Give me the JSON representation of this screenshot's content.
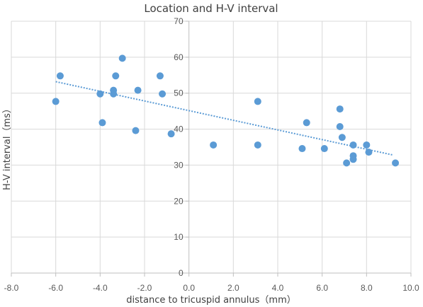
{
  "chart_data": {
    "type": "scatter",
    "title": "Location and H-V interval",
    "xlabel": "distance to tricuspid annulus（mm）",
    "ylabel": "H-V interval（ms）",
    "xlim": [
      -8,
      10
    ],
    "ylim": [
      0,
      70
    ],
    "xticks": [
      -8,
      -6,
      -4,
      -2,
      0,
      2,
      4,
      6,
      8,
      10
    ],
    "xtick_labels": [
      "-8.0",
      "-6.0",
      "-4.0",
      "-2.0",
      "0.0",
      "2.0",
      "4.0",
      "6.0",
      "8.0",
      "10.0"
    ],
    "yticks": [
      0,
      10,
      20,
      30,
      40,
      50,
      60,
      70
    ],
    "ytick_labels": [
      "0",
      "10",
      "20",
      "30",
      "40",
      "50",
      "60",
      "70"
    ],
    "grid": true,
    "point_color": "#5B9BD5",
    "trendline_color": "#5B9BD5",
    "trendline": {
      "type": "linear",
      "x": [
        -6.0,
        9.2
      ],
      "y": [
        53.2,
        32.8
      ]
    },
    "series": [
      {
        "points": [
          [
            -6.0,
            47.7
          ],
          [
            -5.8,
            54.8
          ],
          [
            -4.0,
            49.8
          ],
          [
            -3.9,
            41.8
          ],
          [
            -3.4,
            50.8
          ],
          [
            -3.4,
            49.8
          ],
          [
            -3.3,
            54.8
          ],
          [
            -3.0,
            59.7
          ],
          [
            -2.3,
            50.8
          ],
          [
            -2.4,
            39.6
          ],
          [
            -1.3,
            54.8
          ],
          [
            -1.2,
            49.8
          ],
          [
            -0.8,
            38.7
          ],
          [
            1.1,
            35.6
          ],
          [
            3.1,
            35.6
          ],
          [
            3.1,
            47.7
          ],
          [
            5.1,
            34.6
          ],
          [
            5.3,
            41.8
          ],
          [
            6.1,
            34.6
          ],
          [
            6.8,
            45.6
          ],
          [
            6.8,
            40.7
          ],
          [
            6.9,
            37.7
          ],
          [
            7.1,
            30.6
          ],
          [
            7.4,
            35.6
          ],
          [
            7.4,
            32.6
          ],
          [
            7.4,
            31.6
          ],
          [
            8.0,
            35.6
          ],
          [
            8.1,
            33.6
          ],
          [
            9.3,
            30.6
          ]
        ]
      }
    ]
  }
}
